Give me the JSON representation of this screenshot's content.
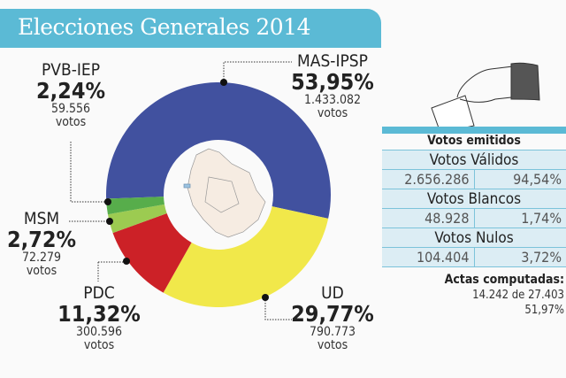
{
  "title": "Elecciones Generales 2014",
  "chart_data": {
    "type": "pie",
    "variant": "donut",
    "title": "Elecciones Generales 2014",
    "start_angle_deg": 268,
    "slices": [
      {
        "name": "MAS-IPSP",
        "percent": 53.95,
        "percent_label": "53,95%",
        "votes": "1.433.082",
        "color": "#41519f"
      },
      {
        "name": "UD",
        "percent": 29.77,
        "percent_label": "29,77%",
        "votes": "790.773",
        "color": "#f1e84a"
      },
      {
        "name": "PDC",
        "percent": 11.32,
        "percent_label": "11,32%",
        "votes": "300.596",
        "color": "#cc2127"
      },
      {
        "name": "MSM",
        "percent": 2.72,
        "percent_label": "2,72%",
        "votes": "72.279",
        "color": "#9ccb51"
      },
      {
        "name": "PVB-IEP",
        "percent": 2.24,
        "percent_label": "2,24%",
        "votes": "59.556",
        "color": "#57ad4b"
      }
    ],
    "votes_word": "votos"
  },
  "table": {
    "header": "Votos emitidos",
    "sections": [
      {
        "label": "Votos Válidos",
        "count": "2.656.286",
        "percent": "94,54%"
      },
      {
        "label": "Votos Blancos",
        "count": "48.928",
        "percent": "1,74%"
      },
      {
        "label": "Votos Nulos",
        "count": "104.404",
        "percent": "3,72%"
      }
    ]
  },
  "actas": {
    "label": "Actas computadas:",
    "count": "14.242 de 27.403",
    "percent": "51,97%"
  }
}
